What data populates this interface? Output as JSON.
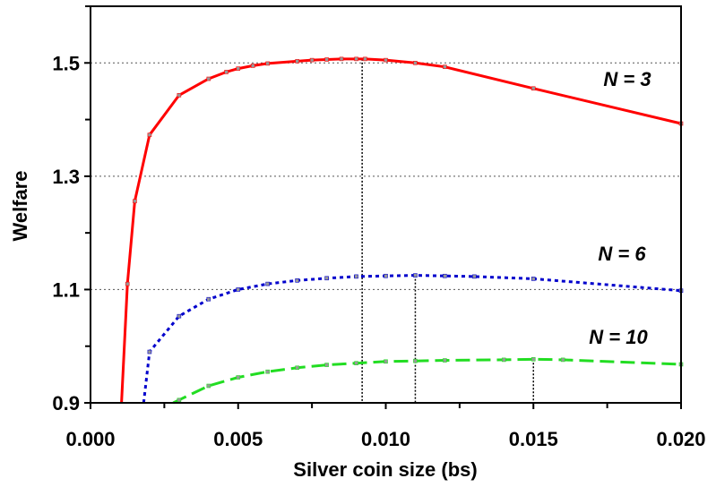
{
  "chart_data": {
    "type": "line",
    "title": "",
    "xlabel": "Silver coin size (bs)",
    "ylabel": "Welfare",
    "xlim": [
      0,
      0.02
    ],
    "ylim": [
      0.9,
      1.6
    ],
    "x_ticks": [
      0,
      0.005,
      0.01,
      0.015,
      0.02
    ],
    "x_tick_labels": [
      "0.000",
      "0.005",
      "0.010",
      "0.015",
      "0.020"
    ],
    "y_ticks": [
      0.9,
      1.1,
      1.3,
      1.5
    ],
    "y_tick_labels": [
      "0.9",
      "1.1",
      "1.3",
      "1.5"
    ],
    "grid": "horizontal dotted at y tick values",
    "series": [
      {
        "name": "N = 3",
        "color": "#ff0000",
        "line_style": "solid",
        "points": [
          [
            0.00105,
            0.9
          ],
          [
            0.00125,
            1.11
          ],
          [
            0.0015,
            1.256
          ],
          [
            0.002,
            1.373
          ],
          [
            0.003,
            1.443
          ],
          [
            0.004,
            1.472
          ],
          [
            0.0046,
            1.484
          ],
          [
            0.005,
            1.49
          ],
          [
            0.0055,
            1.495
          ],
          [
            0.006,
            1.499
          ],
          [
            0.007,
            1.503
          ],
          [
            0.0075,
            1.505
          ],
          [
            0.008,
            1.506
          ],
          [
            0.0085,
            1.507
          ],
          [
            0.009,
            1.507
          ],
          [
            0.0093,
            1.507
          ],
          [
            0.01,
            1.505
          ],
          [
            0.011,
            1.5
          ],
          [
            0.012,
            1.493
          ],
          [
            0.015,
            1.455
          ],
          [
            0.02,
            1.393
          ]
        ],
        "optimum_x": 0.0092
      },
      {
        "name": "N = 6",
        "color": "#0000cc",
        "line_style": "dotted",
        "points": [
          [
            0.0018,
            0.9
          ],
          [
            0.002,
            0.99
          ],
          [
            0.003,
            1.053
          ],
          [
            0.004,
            1.083
          ],
          [
            0.005,
            1.1
          ],
          [
            0.006,
            1.11
          ],
          [
            0.007,
            1.116
          ],
          [
            0.008,
            1.12
          ],
          [
            0.009,
            1.123
          ],
          [
            0.01,
            1.124
          ],
          [
            0.011,
            1.125
          ],
          [
            0.012,
            1.124
          ],
          [
            0.013,
            1.123
          ],
          [
            0.015,
            1.119
          ],
          [
            0.02,
            1.098
          ]
        ],
        "optimum_x": 0.011
      },
      {
        "name": "N = 10",
        "color": "#22dd22",
        "line_style": "dashed",
        "points": [
          [
            0.0028,
            0.9
          ],
          [
            0.003,
            0.905
          ],
          [
            0.004,
            0.93
          ],
          [
            0.005,
            0.945
          ],
          [
            0.006,
            0.955
          ],
          [
            0.007,
            0.962
          ],
          [
            0.008,
            0.967
          ],
          [
            0.009,
            0.97
          ],
          [
            0.01,
            0.973
          ],
          [
            0.011,
            0.974
          ],
          [
            0.012,
            0.975
          ],
          [
            0.014,
            0.976
          ],
          [
            0.015,
            0.977
          ],
          [
            0.016,
            0.976
          ],
          [
            0.02,
            0.968
          ]
        ],
        "optimum_x": 0.015
      }
    ]
  }
}
